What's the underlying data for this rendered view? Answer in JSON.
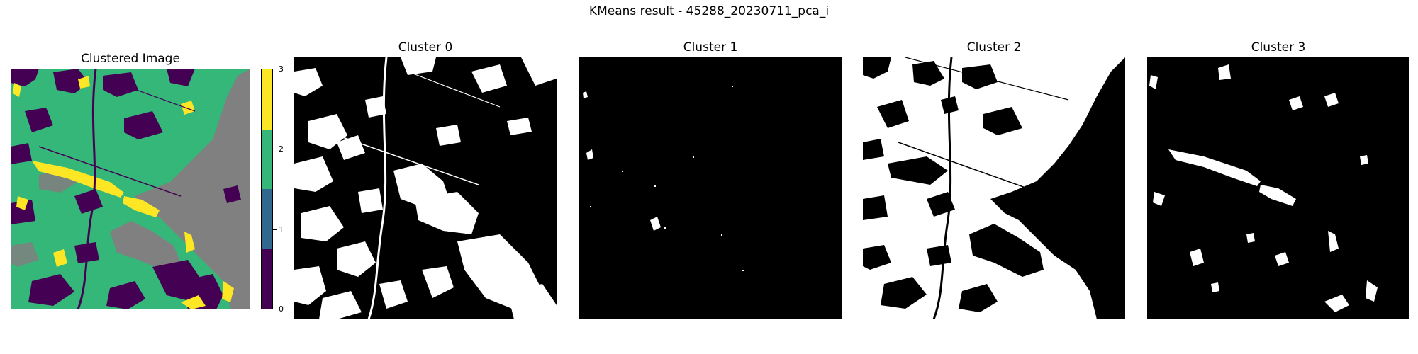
{
  "figure": {
    "title": "KMeans result - 45288_20230711_pca_i"
  },
  "panels": [
    {
      "title": "Clustered Image"
    },
    {
      "title": "Cluster 0"
    },
    {
      "title": "Cluster 1"
    },
    {
      "title": "Cluster 2"
    },
    {
      "title": "Cluster 3"
    }
  ],
  "colorbar": {
    "ticks": [
      "0",
      "1",
      "2",
      "3"
    ],
    "colors": [
      "#440154",
      "#31688e",
      "#35b779",
      "#fde725"
    ]
  },
  "image_colors": {
    "gray": "#808080",
    "green": "#35b779",
    "purple": "#440154",
    "yellow": "#fde725",
    "black": "#000000",
    "white": "#ffffff"
  }
}
